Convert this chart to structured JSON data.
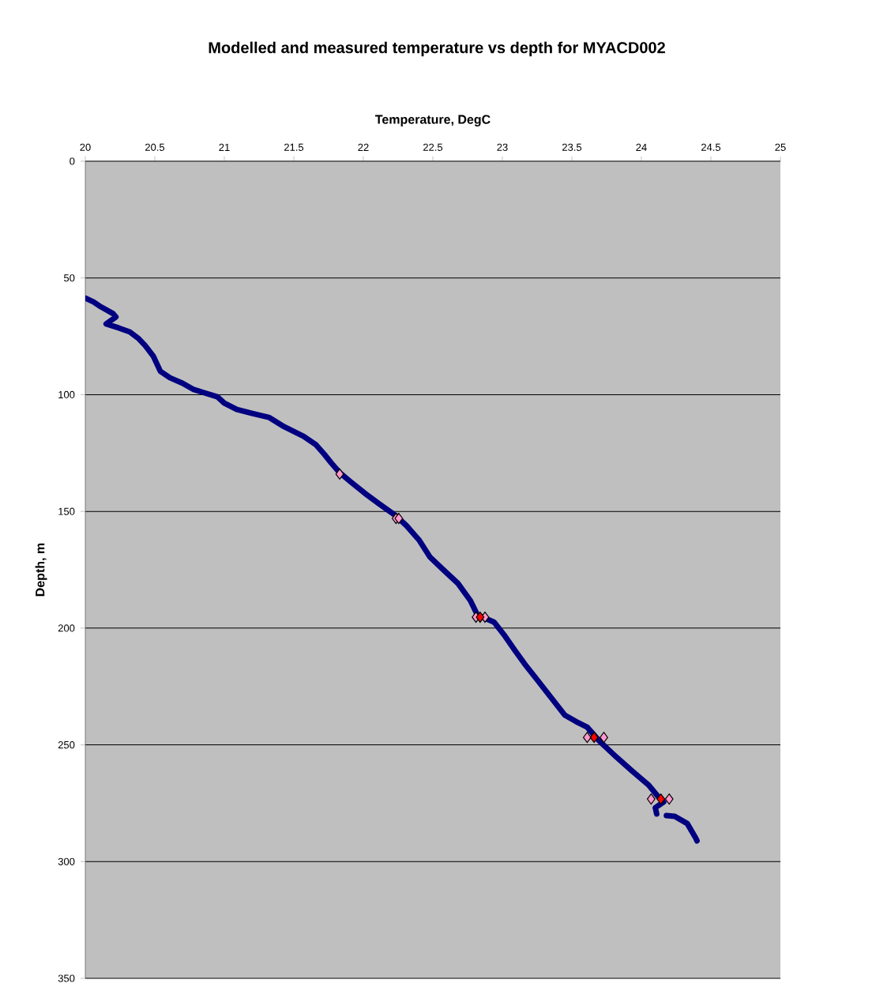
{
  "chart_data": {
    "type": "scatter",
    "title": "Modelled and measured temperature vs depth for MYACD002",
    "xlabel": "Temperature, DegC",
    "ylabel": "Depth, m",
    "xlim": [
      20,
      25
    ],
    "xticks": [
      20,
      20.5,
      21,
      21.5,
      22,
      22.5,
      23,
      23.5,
      24,
      24.5,
      25
    ],
    "ylim": [
      350,
      0
    ],
    "yticks": [
      0,
      50,
      100,
      150,
      200,
      250,
      300,
      350
    ],
    "grid": "y",
    "series": [
      {
        "type": "line",
        "color": "#000080",
        "line_style": "solid",
        "x": [
          20.0,
          20.06,
          20.11,
          20.2,
          20.22,
          20.15,
          20.24,
          20.32,
          20.38,
          20.43,
          20.49,
          20.54,
          20.61,
          20.7,
          20.78,
          20.95,
          21.0,
          21.09,
          21.2,
          21.32,
          21.43,
          21.57,
          21.66,
          21.72,
          21.77,
          21.83,
          21.91,
          22.01,
          22.11,
          22.23,
          22.31,
          22.4,
          22.48,
          22.57,
          22.68,
          22.77,
          22.82,
          22.94,
          23.02,
          23.09,
          23.16,
          23.25,
          23.36,
          23.45,
          23.53,
          23.61,
          23.7,
          23.82,
          23.93,
          24.05,
          24.13,
          24.16,
          24.1,
          24.11,
          null,
          24.18,
          24.24,
          24.33,
          24.39,
          24.4
        ],
        "values": [
          58.6,
          60.3,
          62.3,
          65.3,
          66.7,
          69.7,
          71.4,
          73.1,
          75.8,
          78.9,
          83.6,
          90.0,
          92.8,
          95.1,
          97.8,
          100.9,
          103.6,
          106.3,
          108.0,
          109.7,
          113.7,
          117.8,
          121.5,
          125.6,
          129.3,
          133.4,
          137.4,
          142.2,
          146.6,
          151.7,
          156.1,
          162.2,
          169.6,
          174.7,
          180.8,
          188.2,
          194.3,
          197.4,
          203.5,
          209.5,
          215.3,
          222.1,
          230.5,
          237.3,
          240.0,
          242.4,
          248.5,
          255.2,
          261.0,
          267.1,
          272.8,
          274.5,
          276.9,
          279.6,
          null,
          280.3,
          280.6,
          283.7,
          289.8,
          291.1
        ]
      },
      {
        "color": "#ff99cc",
        "marker": "diamond",
        "x": [
          21.83,
          22.235,
          22.255,
          22.81,
          22.875,
          23.61,
          23.73,
          24.07,
          24.2
        ],
        "values": [
          134,
          153,
          153,
          195.3,
          195.3,
          246.8,
          246.8,
          273.2,
          273.2
        ]
      },
      {
        "color": "#ff0000",
        "marker": "diamond",
        "x": [
          22.84,
          23.66,
          24.14
        ],
        "values": [
          195.3,
          246.8,
          273.2
        ]
      }
    ]
  }
}
